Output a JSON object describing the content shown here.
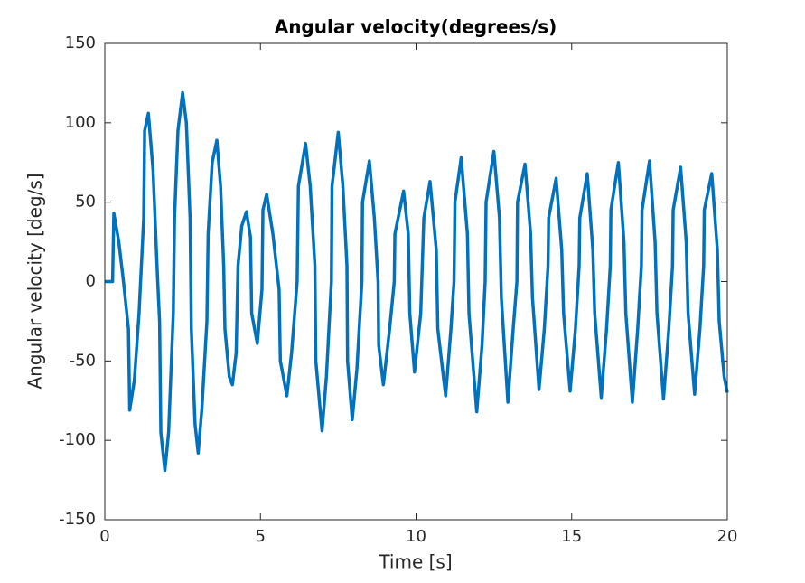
{
  "chart_data": {
    "type": "line",
    "title": "Angular velocity(degrees/s)",
    "xlabel": "Time [s]",
    "ylabel": "Angular velocity [deg/s]",
    "x": [
      0,
      0.25,
      0.29,
      0.45,
      0.6,
      0.76,
      0.8,
      0.95,
      1.1,
      1.25,
      1.28,
      1.4,
      1.55,
      1.7,
      1.76,
      1.8,
      1.93,
      2.05,
      2.2,
      2.24,
      2.35,
      2.5,
      2.62,
      2.74,
      2.78,
      2.9,
      3.0,
      3.12,
      3.28,
      3.32,
      3.45,
      3.6,
      3.72,
      3.82,
      3.86,
      4.0,
      4.1,
      4.22,
      4.28,
      4.4,
      4.55,
      4.68,
      4.72,
      4.9,
      5.05,
      5.08,
      5.2,
      5.4,
      5.6,
      5.64,
      5.85,
      6.0,
      6.18,
      6.22,
      6.45,
      6.6,
      6.75,
      6.78,
      6.98,
      7.12,
      7.28,
      7.3,
      7.5,
      7.65,
      7.78,
      7.8,
      7.95,
      8.1,
      8.26,
      8.28,
      8.5,
      8.66,
      8.78,
      8.8,
      8.95,
      9.15,
      9.3,
      9.32,
      9.6,
      9.75,
      9.8,
      9.95,
      10.15,
      10.25,
      10.45,
      10.65,
      10.7,
      10.95,
      11.12,
      11.22,
      11.25,
      11.45,
      11.65,
      11.7,
      11.95,
      12.12,
      12.22,
      12.25,
      12.5,
      12.68,
      12.74,
      12.95,
      13.12,
      13.24,
      13.26,
      13.5,
      13.68,
      13.74,
      13.95,
      14.12,
      14.24,
      14.26,
      14.5,
      14.68,
      14.74,
      14.95,
      15.12,
      15.24,
      15.26,
      15.5,
      15.68,
      15.74,
      15.95,
      16.12,
      16.24,
      16.26,
      16.5,
      16.68,
      16.74,
      16.95,
      17.12,
      17.24,
      17.26,
      17.5,
      17.68,
      17.74,
      17.95,
      18.12,
      18.24,
      18.26,
      18.5,
      18.68,
      18.74,
      18.95,
      19.12,
      19.24,
      19.26,
      19.5,
      19.68,
      19.74,
      19.9,
      20
    ],
    "series": [
      {
        "name": "Angular velocity",
        "color": "#0072bd",
        "values": [
          0,
          0,
          43,
          25,
          0,
          -30,
          -81,
          -62,
          -20,
          40,
          95,
          106,
          70,
          0,
          -25,
          -95,
          -119,
          -95,
          -20,
          40,
          95,
          119,
          100,
          40,
          -30,
          -90,
          -108,
          -80,
          -25,
          30,
          75,
          89,
          60,
          10,
          -30,
          -60,
          -65,
          -45,
          10,
          35,
          44,
          28,
          -20,
          -39,
          -5,
          45,
          55,
          30,
          -5,
          -50,
          -72,
          -45,
          0,
          60,
          87,
          60,
          10,
          -50,
          -94,
          -60,
          0,
          60,
          94,
          60,
          10,
          -50,
          -87,
          -55,
          0,
          50,
          76,
          40,
          0,
          -40,
          -65,
          -30,
          0,
          30,
          57,
          30,
          -20,
          -57,
          -20,
          40,
          63,
          20,
          -30,
          -72,
          -30,
          0,
          50,
          78,
          30,
          -20,
          -82,
          -40,
          0,
          50,
          82,
          40,
          -10,
          -76,
          -30,
          0,
          50,
          74,
          30,
          -10,
          -68,
          -30,
          10,
          40,
          65,
          20,
          -20,
          -69,
          -30,
          10,
          40,
          68,
          20,
          -20,
          -73,
          -30,
          10,
          45,
          75,
          25,
          -20,
          -76,
          -30,
          10,
          45,
          76,
          25,
          -20,
          -74,
          -30,
          10,
          45,
          72,
          25,
          -20,
          -71,
          -30,
          10,
          45,
          68,
          20,
          -25,
          -60,
          -70
        ]
      }
    ],
    "xlim": [
      0,
      20
    ],
    "xticks": [
      0,
      5,
      10,
      15,
      20
    ],
    "ylim": [
      -150,
      150
    ],
    "yticks": [
      -150,
      -100,
      -50,
      0,
      50,
      100,
      150
    ],
    "grid": false
  }
}
